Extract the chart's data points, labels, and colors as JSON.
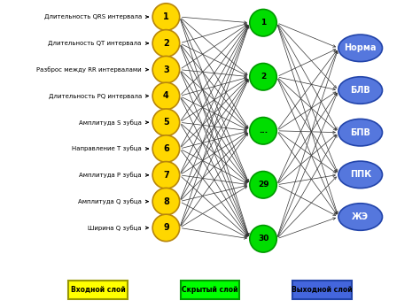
{
  "input_labels": [
    "Длительность QRS интервала",
    "Длительность QT интервала",
    "Разброс между RR интервалами",
    "Длительность PQ интервала",
    "Амплитуда S зубца",
    "Направление T зубца",
    "Амплитуда Р зубца",
    "Амплитуда Q зубца",
    "Ширина Q зубца"
  ],
  "input_numbers": [
    "1",
    "2",
    "3",
    "4",
    "5",
    "6",
    "7",
    "8",
    "9"
  ],
  "hidden_labels": [
    "1",
    "2",
    "...",
    "29",
    "30"
  ],
  "output_labels": [
    "Норма",
    "БЛВ",
    "БПВ",
    "ППК",
    "ЖЭ"
  ],
  "input_color": "#FFD700",
  "input_edge_color": "#B8860B",
  "hidden_color": "#00DD00",
  "hidden_edge_color": "#009900",
  "output_color": "#5577DD",
  "output_edge_color": "#2244AA",
  "connection_color": "#999999",
  "arrow_color": "#333333",
  "bg_color": "#FFFFFF",
  "legend_input_color": "#FFFF00",
  "legend_hidden_color": "#00FF00",
  "legend_output_color": "#4466DD",
  "legend_input_label": "Входной слой",
  "legend_hidden_label": "Скрытый слой",
  "legend_output_label": "Выходной слой",
  "figsize": [
    4.74,
    3.48
  ],
  "dpi": 100
}
